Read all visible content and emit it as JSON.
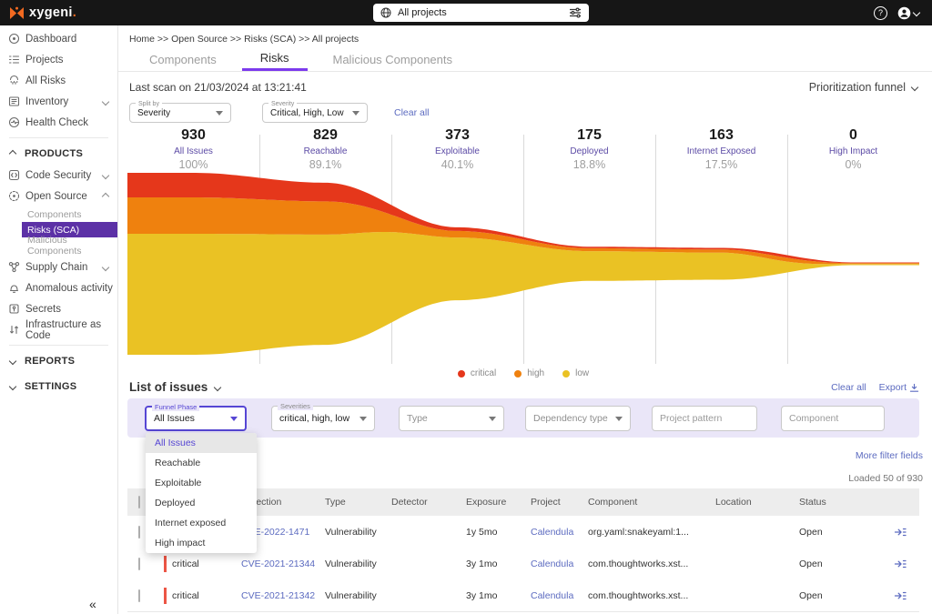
{
  "topbar": {
    "brand": "xygeni",
    "brand_dot": ".",
    "project_selector": "All projects"
  },
  "sidebar": {
    "items": [
      {
        "label": "Dashboard",
        "icon": "dashboard-icon"
      },
      {
        "label": "Projects",
        "icon": "projects-icon"
      },
      {
        "label": "All Risks",
        "icon": "all-risks-icon"
      },
      {
        "label": "Inventory",
        "icon": "inventory-icon",
        "chevron": "down"
      },
      {
        "label": "Health Check",
        "icon": "health-check-icon"
      }
    ],
    "products_section": {
      "label": "PRODUCTS",
      "chevron": "up",
      "items": [
        {
          "label": "Code Security",
          "icon": "code-security-icon",
          "chevron": "down"
        },
        {
          "label": "Open Source",
          "icon": "open-source-icon",
          "chevron": "up",
          "children": [
            {
              "label": "Components",
              "selected": false
            },
            {
              "label": "Risks (SCA)",
              "selected": true
            },
            {
              "label": "Malicious Components",
              "selected": false
            }
          ]
        },
        {
          "label": "Supply Chain",
          "icon": "supply-chain-icon",
          "chevron": "down"
        },
        {
          "label": "Anomalous activity",
          "icon": "anomalous-activity-icon"
        },
        {
          "label": "Secrets",
          "icon": "secrets-icon"
        },
        {
          "label": "Infrastructure as Code",
          "icon": "iac-icon"
        }
      ]
    },
    "bottom_sections": [
      {
        "label": "REPORTS",
        "chevron": "down"
      },
      {
        "label": "SETTINGS",
        "chevron": "down"
      }
    ],
    "collapse_glyph": "«"
  },
  "breadcrumb": "Home >> Open Source >> Risks (SCA) >> All projects",
  "tabs": [
    {
      "label": "Components",
      "active": false
    },
    {
      "label": "Risks",
      "active": true
    },
    {
      "label": "Malicious Components",
      "active": false
    }
  ],
  "scan_info": "Last scan on 21/03/2024 at 13:21:41",
  "view_selector": "Prioritization funnel",
  "funnel_filters": {
    "split_by": {
      "label": "Split by",
      "value": "Severity"
    },
    "severity": {
      "label": "Severity",
      "value": "Critical, High, Low"
    },
    "clear_all": "Clear all"
  },
  "chart_data": {
    "type": "area",
    "title": "Prioritization funnel",
    "stages": [
      {
        "count": "930",
        "label": "All Issues",
        "percent": "100%",
        "pct": 100
      },
      {
        "count": "829",
        "label": "Reachable",
        "percent": "89.1%",
        "pct": 89.1
      },
      {
        "count": "373",
        "label": "Exploitable",
        "percent": "40.1%",
        "pct": 40.1
      },
      {
        "count": "175",
        "label": "Deployed",
        "percent": "18.8%",
        "pct": 18.8
      },
      {
        "count": "163",
        "label": "Internet Exposed",
        "percent": "17.5%",
        "pct": 17.5
      },
      {
        "count": "0",
        "label": "High Impact",
        "percent": "0%",
        "pct": 0
      }
    ],
    "series_split": {
      "critical": [
        0.135,
        0.115,
        0.05,
        0.045,
        0.05,
        0.25
      ],
      "high": [
        0.2,
        0.205,
        0.09,
        0.085,
        0.1,
        0.35
      ]
    },
    "legend": [
      {
        "name": "critical",
        "color": "#e5371b"
      },
      {
        "name": "high",
        "color": "#ef810e"
      },
      {
        "name": "low",
        "color": "#eac224"
      }
    ]
  },
  "list_section": {
    "title": "List of issues",
    "clear_all": "Clear all",
    "export_label": "Export",
    "filters": {
      "funnel_phase": {
        "label": "Funnel Phase",
        "value": "All Issues"
      },
      "severities": {
        "label": "Severities",
        "value": "critical, high, low"
      },
      "type": {
        "placeholder": "Type"
      },
      "dependency_type": {
        "placeholder": "Dependency type"
      },
      "project_pattern": {
        "placeholder": "Project pattern"
      },
      "component": {
        "placeholder": "Component"
      }
    },
    "more_filter_fields": "More filter fields",
    "dropdown_options": [
      "All Issues",
      "Reachable",
      "Exploitable",
      "Deployed",
      "Internet exposed",
      "High impact"
    ],
    "dropdown_selected": "All Issues",
    "loaded_text": "Loaded 50 of 930"
  },
  "issues_table": {
    "columns": [
      "",
      "",
      "Detection",
      "Type",
      "Detector",
      "Exposure",
      "Project",
      "Component",
      "Location",
      "Status",
      ""
    ],
    "rows": [
      {
        "severity": "critical",
        "detection": "CVE-2022-1471",
        "type": "Vulnerability",
        "detector": "",
        "exposure": "1y 5mo",
        "project": "Calendula",
        "component": "org.yaml:snakeyaml:1...",
        "location": "",
        "status": "Open"
      },
      {
        "severity": "critical",
        "detection": "CVE-2021-21344",
        "type": "Vulnerability",
        "detector": "",
        "exposure": "3y 1mo",
        "project": "Calendula",
        "component": "com.thoughtworks.xst...",
        "location": "",
        "status": "Open"
      },
      {
        "severity": "critical",
        "detection": "CVE-2021-21342",
        "type": "Vulnerability",
        "detector": "",
        "exposure": "3y 1mo",
        "project": "Calendula",
        "component": "com.thoughtworks.xst...",
        "location": "",
        "status": "Open"
      }
    ]
  },
  "colors": {
    "accent_purple": "#5c31a6",
    "link": "#5c6bc0",
    "filter_focus": "#5646d4",
    "critical_bar": "#ec5545",
    "brand_orange": "#f26a21"
  }
}
